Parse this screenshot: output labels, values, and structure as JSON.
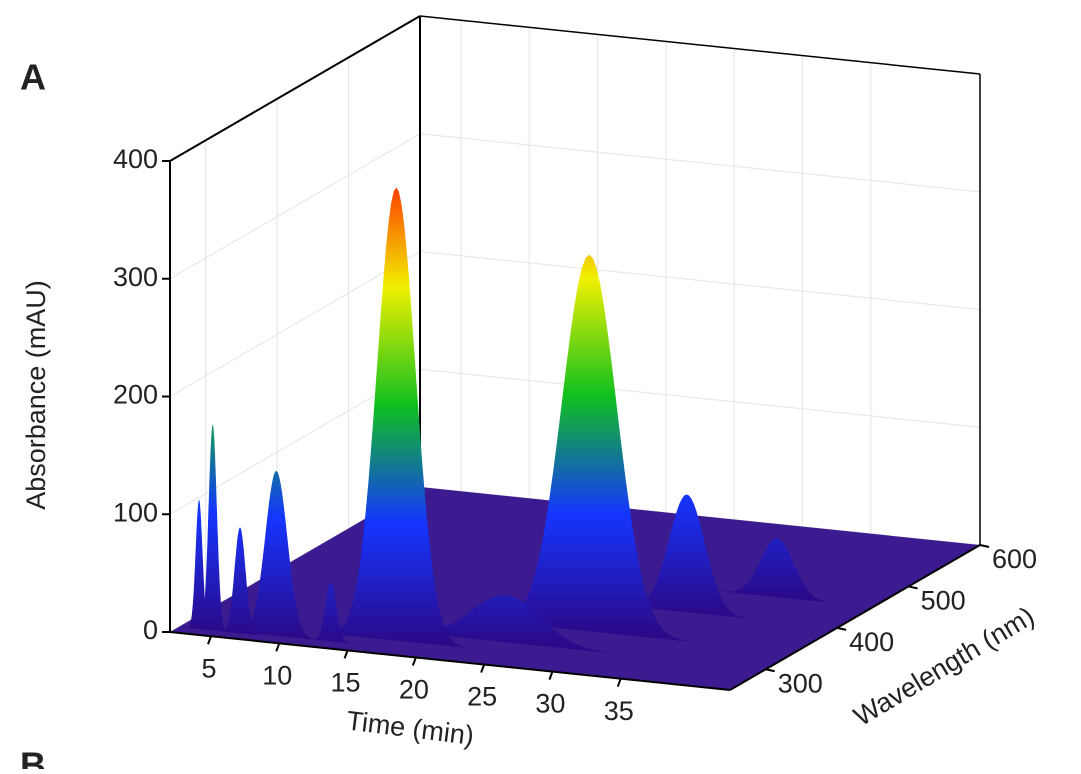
{
  "chart_data": {
    "type": "surface3d",
    "panel_label": "A",
    "next_panel_label": "B",
    "ylabel": "Absorbance (mAU)",
    "xlabel": "Time (min)",
    "zlabel": "Wavelength (nm)",
    "xlim": [
      2,
      43
    ],
    "xticks": [
      5,
      10,
      15,
      20,
      25,
      30,
      35
    ],
    "ylim": [
      0,
      400
    ],
    "yticks": [
      0,
      100,
      200,
      300,
      400
    ],
    "zlim": [
      250,
      600
    ],
    "zticks": [
      300,
      400,
      500,
      600
    ],
    "grid": true,
    "floor_color": "#3b1b8f",
    "colorscale": [
      "#2a0a8a",
      "#1535ff",
      "#10c020",
      "#f0f000",
      "#ff2000"
    ],
    "x": [
      3.5,
      4.5,
      6.5,
      9,
      13,
      17.5,
      17,
      28,
      32,
      36,
      24
    ],
    "wavelengths": [
      262,
      262,
      262,
      265,
      265,
      285,
      280,
      340,
      400,
      450,
      300
    ],
    "values": [
      110,
      175,
      90,
      140,
      50,
      250,
      385,
      320,
      100,
      50,
      40
    ],
    "widths": [
      0.25,
      0.3,
      0.4,
      0.8,
      0.4,
      0.7,
      1.4,
      2.0,
      1.3,
      1.2,
      2.5
    ]
  }
}
